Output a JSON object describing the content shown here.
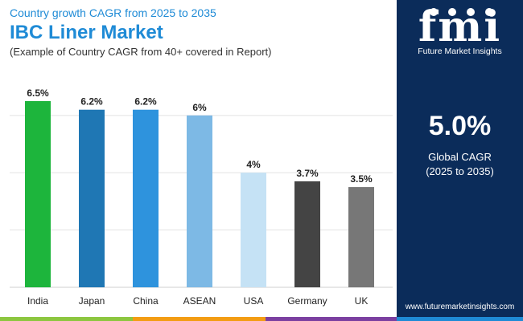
{
  "header": {
    "subtitle": "Country growth CAGR from 2025 to 2035",
    "title": "IBC Liner Market",
    "note": "(Example of Country CAGR from 40+ covered in Report)"
  },
  "panel": {
    "logo_text": "fmi",
    "logo_caption": "Future Market Insights",
    "cagr_value": "5.0%",
    "cagr_label": "Global CAGR",
    "cagr_period": "(2025 to 2035)",
    "website": "www.futuremarketinsights.com"
  },
  "colors": {
    "title": "#1f8bd6",
    "panel_bg": "#0b2c5a",
    "bottom_bar": [
      "#8cc63f",
      "#f39c12",
      "#7b3fa0",
      "#1f8bd6"
    ]
  },
  "chart_data": {
    "type": "bar",
    "categories": [
      "India",
      "Japan",
      "China",
      "ASEAN",
      "USA",
      "Germany",
      "UK"
    ],
    "values": [
      6.5,
      6.2,
      6.2,
      6.0,
      4.0,
      3.7,
      3.5
    ],
    "value_labels": [
      "6.5%",
      "6.2%",
      "6.2%",
      "6%",
      "4%",
      "3.7%",
      "3.5%"
    ],
    "bar_colors": [
      "#1db53c",
      "#1f77b4",
      "#2e93dd",
      "#7db9e5",
      "#c5e2f5",
      "#444444",
      "#777777"
    ],
    "ylim": [
      0,
      6.5
    ],
    "grid": true,
    "gridline_values": [
      2,
      4,
      6
    ],
    "title": "IBC Liner Market",
    "xlabel": "",
    "ylabel": ""
  }
}
